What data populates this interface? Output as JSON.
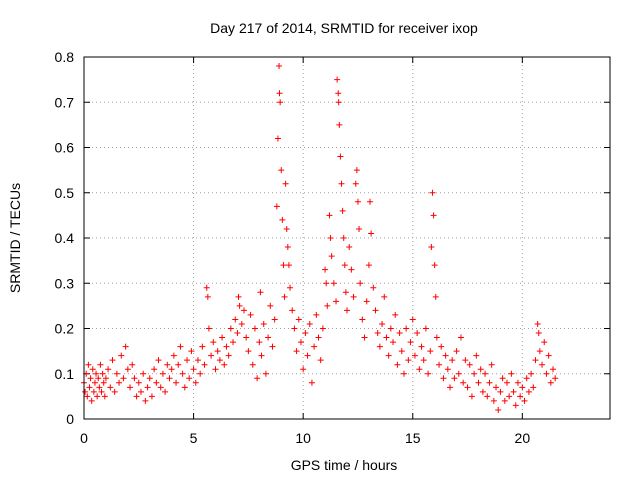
{
  "chart_data": {
    "type": "scatter",
    "title": "Day 217 of 2014, SRMTID for receiver ixop",
    "xlabel": "GPS time / hours",
    "ylabel": "SRMTID / TECUs",
    "xlim": [
      0,
      24
    ],
    "ylim": [
      0,
      0.8
    ],
    "xticks": [
      0,
      5,
      10,
      15,
      20
    ],
    "xtick_labels": [
      "0",
      "5",
      "10",
      "15",
      "20"
    ],
    "yticks": [
      0,
      0.1,
      0.2,
      0.3,
      0.4,
      0.5,
      0.6,
      0.7,
      0.8
    ],
    "ytick_labels": [
      "0",
      "0.1",
      "0.2",
      "0.3",
      "0.4",
      "0.5",
      "0.6",
      "0.7",
      "0.8"
    ],
    "grid": true,
    "marker": "plus",
    "color": "#ff0000",
    "series": [
      {
        "name": "SRMTID",
        "points": [
          [
            0.0,
            0.08
          ],
          [
            0.05,
            0.06
          ],
          [
            0.1,
            0.1
          ],
          [
            0.15,
            0.05
          ],
          [
            0.2,
            0.12
          ],
          [
            0.25,
            0.07
          ],
          [
            0.3,
            0.09
          ],
          [
            0.35,
            0.04
          ],
          [
            0.4,
            0.11
          ],
          [
            0.45,
            0.06
          ],
          [
            0.5,
            0.08
          ],
          [
            0.55,
            0.1
          ],
          [
            0.6,
            0.05
          ],
          [
            0.65,
            0.09
          ],
          [
            0.7,
            0.07
          ],
          [
            0.75,
            0.12
          ],
          [
            0.8,
            0.06
          ],
          [
            0.85,
            0.1
          ],
          [
            0.9,
            0.08
          ],
          [
            0.95,
            0.05
          ],
          [
            1.0,
            0.09
          ],
          [
            1.1,
            0.11
          ],
          [
            1.2,
            0.07
          ],
          [
            1.3,
            0.13
          ],
          [
            1.4,
            0.06
          ],
          [
            1.5,
            0.1
          ],
          [
            1.6,
            0.08
          ],
          [
            1.7,
            0.14
          ],
          [
            1.8,
            0.09
          ],
          [
            1.9,
            0.16
          ],
          [
            2.0,
            0.11
          ],
          [
            2.1,
            0.07
          ],
          [
            2.2,
            0.12
          ],
          [
            2.3,
            0.09
          ],
          [
            2.4,
            0.05
          ],
          [
            2.5,
            0.08
          ],
          [
            2.6,
            0.06
          ],
          [
            2.7,
            0.1
          ],
          [
            2.8,
            0.04
          ],
          [
            2.9,
            0.07
          ],
          [
            3.0,
            0.09
          ],
          [
            3.1,
            0.05
          ],
          [
            3.2,
            0.11
          ],
          [
            3.3,
            0.08
          ],
          [
            3.4,
            0.13
          ],
          [
            3.5,
            0.07
          ],
          [
            3.6,
            0.1
          ],
          [
            3.7,
            0.06
          ],
          [
            3.8,
            0.12
          ],
          [
            3.9,
            0.09
          ],
          [
            4.0,
            0.11
          ],
          [
            4.1,
            0.14
          ],
          [
            4.2,
            0.08
          ],
          [
            4.3,
            0.12
          ],
          [
            4.4,
            0.16
          ],
          [
            4.5,
            0.1
          ],
          [
            4.6,
            0.07
          ],
          [
            4.7,
            0.13
          ],
          [
            4.8,
            0.09
          ],
          [
            4.9,
            0.15
          ],
          [
            5.0,
            0.11
          ],
          [
            5.1,
            0.08
          ],
          [
            5.2,
            0.13
          ],
          [
            5.3,
            0.1
          ],
          [
            5.4,
            0.16
          ],
          [
            5.5,
            0.12
          ],
          [
            5.6,
            0.29
          ],
          [
            5.65,
            0.27
          ],
          [
            5.7,
            0.2
          ],
          [
            5.8,
            0.14
          ],
          [
            5.9,
            0.17
          ],
          [
            6.0,
            0.11
          ],
          [
            6.1,
            0.15
          ],
          [
            6.2,
            0.13
          ],
          [
            6.3,
            0.18
          ],
          [
            6.4,
            0.12
          ],
          [
            6.5,
            0.16
          ],
          [
            6.6,
            0.14
          ],
          [
            6.7,
            0.2
          ],
          [
            6.8,
            0.17
          ],
          [
            6.9,
            0.22
          ],
          [
            7.0,
            0.19
          ],
          [
            7.05,
            0.27
          ],
          [
            7.1,
            0.25
          ],
          [
            7.2,
            0.21
          ],
          [
            7.3,
            0.24
          ],
          [
            7.4,
            0.18
          ],
          [
            7.5,
            0.15
          ],
          [
            7.6,
            0.23
          ],
          [
            7.7,
            0.12
          ],
          [
            7.8,
            0.2
          ],
          [
            7.9,
            0.09
          ],
          [
            8.0,
            0.17
          ],
          [
            8.05,
            0.28
          ],
          [
            8.1,
            0.14
          ],
          [
            8.2,
            0.21
          ],
          [
            8.3,
            0.1
          ],
          [
            8.4,
            0.18
          ],
          [
            8.5,
            0.25
          ],
          [
            8.6,
            0.16
          ],
          [
            8.7,
            0.22
          ],
          [
            8.8,
            0.47
          ],
          [
            8.85,
            0.62
          ],
          [
            8.9,
            0.78
          ],
          [
            8.92,
            0.72
          ],
          [
            8.95,
            0.7
          ],
          [
            9.0,
            0.55
          ],
          [
            9.05,
            0.44
          ],
          [
            9.1,
            0.34
          ],
          [
            9.15,
            0.27
          ],
          [
            9.2,
            0.52
          ],
          [
            9.25,
            0.42
          ],
          [
            9.3,
            0.38
          ],
          [
            9.35,
            0.34
          ],
          [
            9.4,
            0.29
          ],
          [
            9.5,
            0.24
          ],
          [
            9.6,
            0.2
          ],
          [
            9.7,
            0.15
          ],
          [
            9.8,
            0.22
          ],
          [
            9.9,
            0.17
          ],
          [
            10.0,
            0.11
          ],
          [
            10.1,
            0.19
          ],
          [
            10.2,
            0.14
          ],
          [
            10.3,
            0.21
          ],
          [
            10.4,
            0.08
          ],
          [
            10.5,
            0.16
          ],
          [
            10.6,
            0.23
          ],
          [
            10.7,
            0.18
          ],
          [
            10.8,
            0.13
          ],
          [
            10.9,
            0.2
          ],
          [
            11.0,
            0.33
          ],
          [
            11.05,
            0.3
          ],
          [
            11.1,
            0.25
          ],
          [
            11.2,
            0.45
          ],
          [
            11.25,
            0.4
          ],
          [
            11.3,
            0.36
          ],
          [
            11.4,
            0.3
          ],
          [
            11.5,
            0.26
          ],
          [
            11.55,
            0.75
          ],
          [
            11.6,
            0.72
          ],
          [
            11.62,
            0.7
          ],
          [
            11.65,
            0.65
          ],
          [
            11.7,
            0.58
          ],
          [
            11.75,
            0.52
          ],
          [
            11.8,
            0.46
          ],
          [
            11.85,
            0.4
          ],
          [
            11.9,
            0.34
          ],
          [
            11.95,
            0.28
          ],
          [
            12.0,
            0.24
          ],
          [
            12.1,
            0.38
          ],
          [
            12.2,
            0.33
          ],
          [
            12.3,
            0.27
          ],
          [
            12.4,
            0.52
          ],
          [
            12.45,
            0.55
          ],
          [
            12.5,
            0.48
          ],
          [
            12.55,
            0.42
          ],
          [
            12.6,
            0.3
          ],
          [
            12.7,
            0.22
          ],
          [
            12.8,
            0.18
          ],
          [
            12.9,
            0.26
          ],
          [
            13.0,
            0.34
          ],
          [
            13.05,
            0.48
          ],
          [
            13.1,
            0.41
          ],
          [
            13.2,
            0.29
          ],
          [
            13.3,
            0.24
          ],
          [
            13.4,
            0.19
          ],
          [
            13.5,
            0.16
          ],
          [
            13.6,
            0.21
          ],
          [
            13.7,
            0.27
          ],
          [
            13.8,
            0.18
          ],
          [
            13.9,
            0.14
          ],
          [
            14.0,
            0.2
          ],
          [
            14.1,
            0.17
          ],
          [
            14.2,
            0.23
          ],
          [
            14.3,
            0.12
          ],
          [
            14.4,
            0.19
          ],
          [
            14.5,
            0.15
          ],
          [
            14.6,
            0.1
          ],
          [
            14.7,
            0.2
          ],
          [
            14.8,
            0.13
          ],
          [
            14.9,
            0.17
          ],
          [
            15.0,
            0.22
          ],
          [
            15.1,
            0.14
          ],
          [
            15.2,
            0.19
          ],
          [
            15.3,
            0.11
          ],
          [
            15.4,
            0.16
          ],
          [
            15.5,
            0.13
          ],
          [
            15.6,
            0.2
          ],
          [
            15.7,
            0.1
          ],
          [
            15.8,
            0.15
          ],
          [
            15.85,
            0.38
          ],
          [
            15.9,
            0.5
          ],
          [
            15.95,
            0.45
          ],
          [
            16.0,
            0.34
          ],
          [
            16.05,
            0.27
          ],
          [
            16.1,
            0.18
          ],
          [
            16.2,
            0.12
          ],
          [
            16.3,
            0.16
          ],
          [
            16.4,
            0.09
          ],
          [
            16.5,
            0.14
          ],
          [
            16.6,
            0.11
          ],
          [
            16.7,
            0.07
          ],
          [
            16.8,
            0.13
          ],
          [
            16.9,
            0.09
          ],
          [
            17.0,
            0.15
          ],
          [
            17.1,
            0.1
          ],
          [
            17.2,
            0.18
          ],
          [
            17.3,
            0.08
          ],
          [
            17.4,
            0.13
          ],
          [
            17.5,
            0.07
          ],
          [
            17.6,
            0.12
          ],
          [
            17.7,
            0.05
          ],
          [
            17.8,
            0.1
          ],
          [
            17.9,
            0.14
          ],
          [
            18.0,
            0.08
          ],
          [
            18.1,
            0.11
          ],
          [
            18.2,
            0.06
          ],
          [
            18.3,
            0.1
          ],
          [
            18.4,
            0.05
          ],
          [
            18.5,
            0.08
          ],
          [
            18.6,
            0.12
          ],
          [
            18.7,
            0.04
          ],
          [
            18.8,
            0.07
          ],
          [
            18.9,
            0.02
          ],
          [
            19.0,
            0.06
          ],
          [
            19.1,
            0.09
          ],
          [
            19.2,
            0.04
          ],
          [
            19.3,
            0.08
          ],
          [
            19.4,
            0.05
          ],
          [
            19.5,
            0.1
          ],
          [
            19.6,
            0.06
          ],
          [
            19.7,
            0.03
          ],
          [
            19.8,
            0.08
          ],
          [
            19.9,
            0.05
          ],
          [
            20.0,
            0.07
          ],
          [
            20.1,
            0.04
          ],
          [
            20.2,
            0.09
          ],
          [
            20.3,
            0.06
          ],
          [
            20.4,
            0.1
          ],
          [
            20.5,
            0.07
          ],
          [
            20.6,
            0.13
          ],
          [
            20.7,
            0.21
          ],
          [
            20.75,
            0.19
          ],
          [
            20.8,
            0.15
          ],
          [
            20.9,
            0.12
          ],
          [
            21.0,
            0.17
          ],
          [
            21.1,
            0.1
          ],
          [
            21.2,
            0.14
          ],
          [
            21.3,
            0.08
          ],
          [
            21.4,
            0.11
          ],
          [
            21.5,
            0.09
          ]
        ]
      }
    ]
  }
}
